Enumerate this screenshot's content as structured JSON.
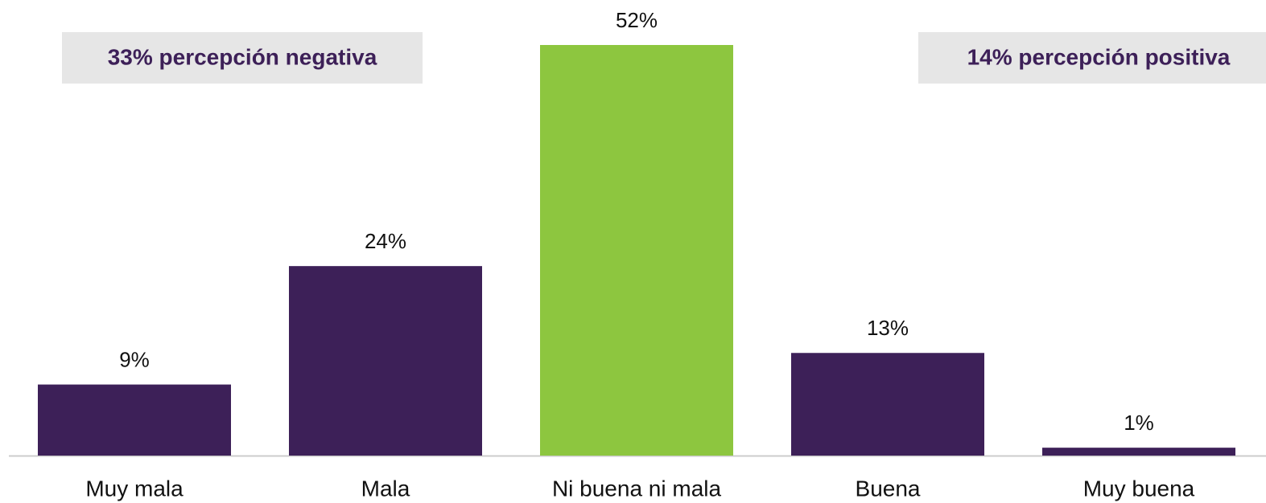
{
  "chart_data": {
    "type": "bar",
    "categories": [
      "Muy mala",
      "Mala",
      "Ni buena ni mala",
      "Buena",
      "Muy buena"
    ],
    "values": [
      9,
      24,
      52,
      13,
      1
    ],
    "value_labels": [
      "9%",
      "24%",
      "52%",
      "13%",
      "1%"
    ],
    "colors": [
      "#3d2058",
      "#3d2058",
      "#8dc63f",
      "#3d2058",
      "#3d2058"
    ],
    "annotations": [
      "33% percepción negativa",
      "14% percepción positiva"
    ]
  }
}
